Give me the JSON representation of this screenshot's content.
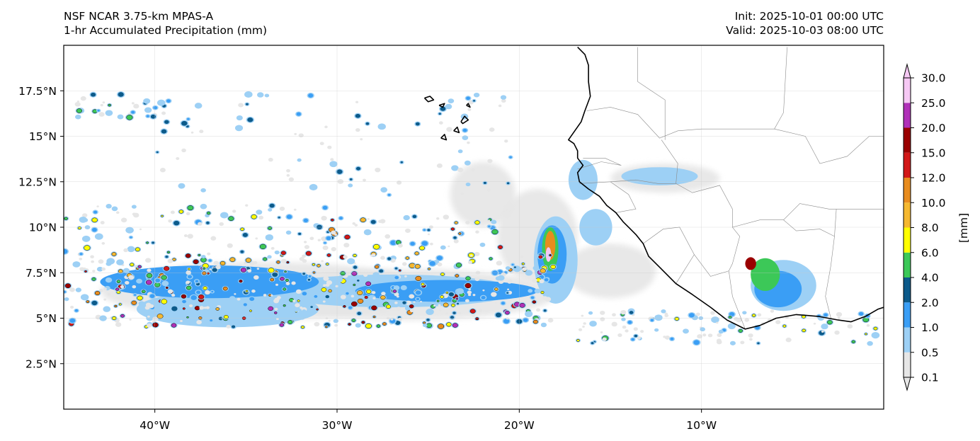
{
  "header": {
    "title_line1": "NSF NCAR 3.75-km MPAS-A",
    "title_line2": "1-hr Accumulated Precipitation (mm)",
    "init": "Init: 2025-10-01 00:00 UTC",
    "valid": "Valid: 2025-10-03 08:00 UTC"
  },
  "map": {
    "lon_range": [
      -45,
      0
    ],
    "lat_range": [
      0,
      20
    ],
    "lon_ticks": [
      {
        "value": -40,
        "label": "40°W"
      },
      {
        "value": -30,
        "label": "30°W"
      },
      {
        "value": -20,
        "label": "20°W"
      },
      {
        "value": -10,
        "label": "10°W"
      }
    ],
    "lat_ticks": [
      {
        "value": 2.5,
        "label": "2.5°N"
      },
      {
        "value": 5,
        "label": "5°N"
      },
      {
        "value": 7.5,
        "label": "7.5°N"
      },
      {
        "value": 10,
        "label": "10°N"
      },
      {
        "value": 12.5,
        "label": "12.5°N"
      },
      {
        "value": 15,
        "label": "15°N"
      },
      {
        "value": 17.5,
        "label": "17.5°N"
      }
    ],
    "gridlines": true
  },
  "colorbar": {
    "unit_label": "[mm]",
    "levels": [
      "0.1",
      "0.5",
      "1.0",
      "2.0",
      "4.0",
      "6.0",
      "8.0",
      "10.0",
      "12.0",
      "15.0",
      "20.0",
      "25.0",
      "30.0"
    ],
    "colors": [
      "#e6e6e6",
      "#9dd0f5",
      "#3a9ef5",
      "#0c5a8a",
      "#3cc858",
      "#ffff00",
      "#f5b830",
      "#e88c1e",
      "#d21818",
      "#9a0000",
      "#b030b8",
      "#f6c8f4"
    ]
  },
  "precip_areas": [
    {
      "kind": "blob",
      "lon": -34,
      "lat": 6.5,
      "rx": 9,
      "ry": 1.6,
      "level": 0
    },
    {
      "kind": "blob",
      "lon": -26,
      "lat": 6.3,
      "rx": 8,
      "ry": 1.4,
      "level": 0
    },
    {
      "kind": "blob",
      "lon": -22,
      "lat": 11.8,
      "rx": 1.8,
      "ry": 1.8,
      "level": 0
    },
    {
      "kind": "blob",
      "lon": -19,
      "lat": 9.5,
      "rx": 2.2,
      "ry": 2.6,
      "level": 0
    },
    {
      "kind": "blob",
      "lon": -15,
      "lat": 7.6,
      "rx": 2.5,
      "ry": 1.5,
      "level": 0
    },
    {
      "kind": "blob",
      "lon": -12,
      "lat": 12.7,
      "rx": 3,
      "ry": 0.8,
      "level": 0
    },
    {
      "kind": "blob",
      "lon": -36,
      "lat": 5.5,
      "rx": 5,
      "ry": 1.0,
      "level": 1
    },
    {
      "kind": "blob",
      "lon": -27,
      "lat": 6.5,
      "rx": 7,
      "ry": 0.9,
      "level": 1
    },
    {
      "kind": "blob",
      "lon": -18,
      "lat": 8.2,
      "rx": 1.2,
      "ry": 2.4,
      "level": 1
    },
    {
      "kind": "blob",
      "lon": -16.5,
      "lat": 12.6,
      "rx": 0.8,
      "ry": 1.1,
      "level": 1
    },
    {
      "kind": "blob",
      "lon": -12.3,
      "lat": 12.8,
      "rx": 2.1,
      "ry": 0.5,
      "level": 1
    },
    {
      "kind": "blob",
      "lon": -15.8,
      "lat": 10,
      "rx": 0.9,
      "ry": 1.0,
      "level": 1
    },
    {
      "kind": "blob",
      "lon": -5.5,
      "lat": 6.8,
      "rx": 1.8,
      "ry": 1.4,
      "level": 1
    },
    {
      "kind": "blob",
      "lon": -37,
      "lat": 7,
      "rx": 6,
      "ry": 0.9,
      "level": 2
    },
    {
      "kind": "blob",
      "lon": -24,
      "lat": 6.5,
      "rx": 5,
      "ry": 0.6,
      "level": 2
    },
    {
      "kind": "blob",
      "lon": -18.2,
      "lat": 8.5,
      "rx": 0.8,
      "ry": 1.6,
      "level": 2
    },
    {
      "kind": "blob",
      "lon": -5.8,
      "lat": 6.6,
      "rx": 1.3,
      "ry": 1.0,
      "level": 2
    },
    {
      "kind": "blob",
      "lon": -18.3,
      "lat": 8.8,
      "rx": 0.45,
      "ry": 1.2,
      "level": 4
    },
    {
      "kind": "blob",
      "lon": -6.5,
      "lat": 7.4,
      "rx": 0.8,
      "ry": 0.9,
      "level": 4
    },
    {
      "kind": "blob",
      "lon": -18.3,
      "lat": 9.0,
      "rx": 0.28,
      "ry": 0.8,
      "level": 7
    },
    {
      "kind": "blob",
      "lon": -7.3,
      "lat": 8.0,
      "rx": 0.3,
      "ry": 0.35,
      "level": 9
    },
    {
      "kind": "blob",
      "lon": -18.4,
      "lat": 8.5,
      "rx": 0.15,
      "ry": 0.4,
      "level": 11
    }
  ],
  "coastlines": [
    {
      "type": "coast",
      "points": [
        [
          -16.8,
          19.9
        ],
        [
          -16.4,
          19.5
        ],
        [
          -16.2,
          18.9
        ],
        [
          -16.2,
          18.0
        ],
        [
          -16.1,
          17.2
        ],
        [
          -16.4,
          16.4
        ],
        [
          -16.6,
          15.8
        ],
        [
          -17.3,
          14.8
        ],
        [
          -17.0,
          14.6
        ],
        [
          -16.8,
          14.2
        ],
        [
          -16.8,
          13.8
        ],
        [
          -16.5,
          13.4
        ],
        [
          -16.8,
          13.0
        ],
        [
          -16.7,
          12.5
        ],
        [
          -16.2,
          12.1
        ],
        [
          -15.6,
          11.7
        ],
        [
          -15.2,
          11.2
        ],
        [
          -14.7,
          10.8
        ],
        [
          -14.3,
          10.3
        ],
        [
          -13.6,
          9.6
        ],
        [
          -13.2,
          9.1
        ],
        [
          -12.9,
          8.4
        ],
        [
          -12.2,
          7.7
        ],
        [
          -11.4,
          6.9
        ],
        [
          -10.5,
          6.3
        ],
        [
          -9.5,
          5.6
        ],
        [
          -8.6,
          4.9
        ],
        [
          -7.6,
          4.4
        ],
        [
          -6.8,
          4.6
        ],
        [
          -5.9,
          5.0
        ],
        [
          -4.8,
          5.2
        ],
        [
          -3.6,
          5.1
        ],
        [
          -2.5,
          4.9
        ],
        [
          -1.8,
          4.8
        ],
        [
          -1.0,
          5.1
        ],
        [
          -0.3,
          5.5
        ],
        [
          0,
          5.6
        ]
      ]
    },
    {
      "type": "island",
      "points": [
        [
          -25.2,
          17.1
        ],
        [
          -24.9,
          17.2
        ],
        [
          -24.7,
          17.0
        ],
        [
          -25.0,
          16.9
        ],
        [
          -25.2,
          17.1
        ]
      ]
    },
    {
      "type": "island",
      "points": [
        [
          -24.4,
          16.7
        ],
        [
          -24.1,
          16.8
        ],
        [
          -24.2,
          16.6
        ],
        [
          -24.4,
          16.7
        ]
      ]
    },
    {
      "type": "island",
      "points": [
        [
          -23.2,
          15.8
        ],
        [
          -23.0,
          16.1
        ],
        [
          -22.8,
          15.9
        ],
        [
          -23.1,
          15.7
        ],
        [
          -23.2,
          15.8
        ]
      ]
    },
    {
      "type": "island",
      "points": [
        [
          -23.6,
          15.3
        ],
        [
          -23.4,
          15.5
        ],
        [
          -23.3,
          15.2
        ],
        [
          -23.6,
          15.3
        ]
      ]
    },
    {
      "type": "island",
      "points": [
        [
          -24.3,
          14.9
        ],
        [
          -24.1,
          15.1
        ],
        [
          -24.0,
          14.8
        ],
        [
          -24.3,
          14.9
        ]
      ]
    },
    {
      "type": "island",
      "points": [
        [
          -22.9,
          16.7
        ],
        [
          -22.8,
          16.8
        ],
        [
          -22.7,
          16.6
        ],
        [
          -22.9,
          16.7
        ]
      ]
    }
  ],
  "borders": [
    [
      [
        -13.5,
        19.9
      ],
      [
        -13.5,
        18.0
      ],
      [
        -12.0,
        17.0
      ],
      [
        -12.0,
        15.0
      ],
      [
        -12.0,
        14.8
      ]
    ],
    [
      [
        -16.3,
        16.4
      ],
      [
        -15.0,
        16.6
      ],
      [
        -13.5,
        16.2
      ],
      [
        -12.3,
        14.9
      ],
      [
        -11.3,
        15.3
      ],
      [
        -10.0,
        15.4
      ],
      [
        -6.0,
        15.4
      ],
      [
        -5.5,
        16.3
      ],
      [
        -5.3,
        19.9
      ]
    ],
    [
      [
        -12.2,
        14.8
      ],
      [
        -11.3,
        13.5
      ],
      [
        -11.4,
        12.4
      ],
      [
        -12.4,
        12.4
      ],
      [
        -13.6,
        12.6
      ],
      [
        -15.0,
        12.5
      ],
      [
        -16.7,
        12.4
      ]
    ],
    [
      [
        -16.8,
        13.2
      ],
      [
        -15.5,
        13.6
      ],
      [
        -14.4,
        13.4
      ],
      [
        -15.3,
        13.8
      ],
      [
        -16.5,
        13.8
      ]
    ],
    [
      [
        -15.0,
        12.5
      ],
      [
        -14.0,
        11.8
      ],
      [
        -13.6,
        11.0
      ],
      [
        -14.7,
        10.8
      ]
    ],
    [
      [
        -13.2,
        9.1
      ],
      [
        -12.1,
        9.9
      ],
      [
        -11.2,
        10.0
      ],
      [
        -10.4,
        8.5
      ],
      [
        -11.4,
        6.9
      ]
    ],
    [
      [
        -10.4,
        8.5
      ],
      [
        -9.5,
        7.3
      ],
      [
        -8.5,
        7.6
      ],
      [
        -8.3,
        6.2
      ],
      [
        -7.6,
        4.4
      ]
    ],
    [
      [
        -11.4,
        12.4
      ],
      [
        -10.5,
        11.9
      ],
      [
        -9.0,
        12.3
      ],
      [
        -8.3,
        11.0
      ],
      [
        -8.3,
        10.0
      ],
      [
        -7.9,
        9.5
      ],
      [
        -8.3,
        8.0
      ],
      [
        -8.5,
        7.6
      ]
    ],
    [
      [
        -6.0,
        15.4
      ],
      [
        -4.3,
        15.0
      ],
      [
        -3.5,
        13.5
      ],
      [
        -2.0,
        13.9
      ],
      [
        -0.8,
        15.0
      ],
      [
        0,
        15.0
      ]
    ],
    [
      [
        -8.3,
        10.0
      ],
      [
        -6.8,
        10.4
      ],
      [
        -5.5,
        10.4
      ],
      [
        -4.8,
        9.8
      ],
      [
        -3.5,
        9.9
      ],
      [
        -2.7,
        9.5
      ],
      [
        -2.9,
        7.9
      ],
      [
        -3.2,
        6.2
      ],
      [
        -2.9,
        5.0
      ]
    ],
    [
      [
        -5.5,
        10.4
      ],
      [
        -4.6,
        11.3
      ],
      [
        -3.0,
        11.0
      ],
      [
        -0.6,
        11.0
      ],
      [
        0,
        11.0
      ]
    ],
    [
      [
        -2.7,
        9.5
      ],
      [
        -2.6,
        11.0
      ]
    ]
  ]
}
